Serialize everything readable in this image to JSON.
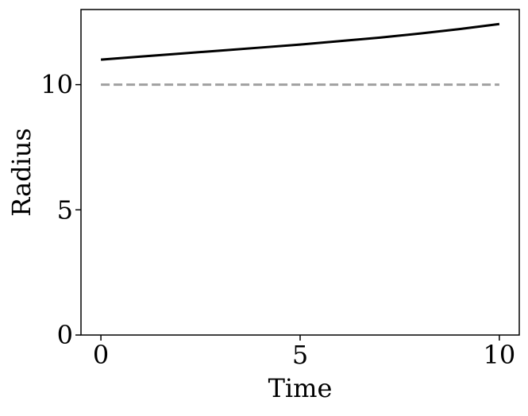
{
  "chart_data": {
    "type": "line",
    "title": "",
    "xlabel": "Time",
    "ylabel": "Radius",
    "xlim": [
      -0.5,
      10.5
    ],
    "ylim": [
      0,
      13
    ],
    "xticks": [
      0,
      5,
      10
    ],
    "yticks": [
      0,
      5,
      10
    ],
    "xtick_labels": [
      "0",
      "5",
      "10"
    ],
    "ytick_labels": [
      "0",
      "5",
      "10"
    ],
    "grid": false,
    "legend": "none",
    "series": [
      {
        "style": "solid",
        "color": "#000000",
        "x": [
          0,
          1,
          2,
          3,
          4,
          5,
          6,
          7,
          8,
          9,
          10
        ],
        "y": [
          11.0,
          11.12,
          11.24,
          11.36,
          11.48,
          11.6,
          11.74,
          11.88,
          12.04,
          12.22,
          12.42
        ]
      },
      {
        "style": "dashed",
        "color": "#a0a0a0",
        "x": [
          0,
          10
        ],
        "y": [
          10,
          10
        ]
      }
    ]
  }
}
